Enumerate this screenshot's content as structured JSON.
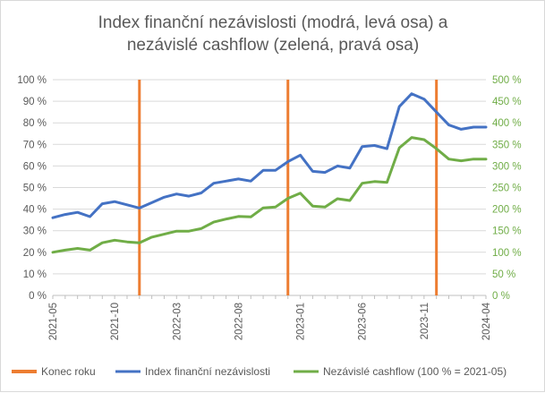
{
  "chart_data": {
    "type": "line",
    "title": [
      "Index finanční nezávislosti (modrá, levá osa) a",
      "nezávislé cashflow (zelená, pravá osa)"
    ],
    "x_ticks": [
      "2021-05",
      "2021-10",
      "2022-03",
      "2022-08",
      "2023-01",
      "2023-06",
      "2023-11",
      "2024-04"
    ],
    "x_first": "2021-05",
    "x_last": "2024-04",
    "left_axis": {
      "min": 0,
      "max": 100,
      "step": 10,
      "tick_labels": [
        "0 %",
        "10 %",
        "20 %",
        "30 %",
        "40 %",
        "50 %",
        "60 %",
        "70 %",
        "80 %",
        "90 %",
        "100 %"
      ],
      "color": "#595959"
    },
    "right_axis": {
      "min": 0,
      "max": 500,
      "step": 50,
      "tick_labels": [
        "0 %",
        "50 %",
        "100 %",
        "150 %",
        "200 %",
        "250 %",
        "300 %",
        "350 %",
        "400 %",
        "450 %",
        "500 %"
      ],
      "color": "#70ad47"
    },
    "grid": "horizontal",
    "legend_position": "bottom",
    "year_end_markers": {
      "name": "Konec roku",
      "color": "#ed7d31",
      "x": [
        "2021-12",
        "2022-12",
        "2023-12"
      ]
    },
    "series": [
      {
        "name": "Index finanční nezávislosti",
        "axis": "left",
        "color": "#4472c4",
        "x": [
          "2021-05",
          "2021-06",
          "2021-07",
          "2021-08",
          "2021-09",
          "2021-10",
          "2021-11",
          "2021-12",
          "2022-01",
          "2022-02",
          "2022-03",
          "2022-04",
          "2022-05",
          "2022-06",
          "2022-07",
          "2022-08",
          "2022-09",
          "2022-10",
          "2022-11",
          "2022-12",
          "2023-01",
          "2023-02",
          "2023-03",
          "2023-04",
          "2023-05",
          "2023-06",
          "2023-07",
          "2023-08",
          "2023-09",
          "2023-10",
          "2023-11",
          "2023-12",
          "2024-01",
          "2024-02",
          "2024-03",
          "2024-04"
        ],
        "values": [
          36,
          37.5,
          38.5,
          36.5,
          42.5,
          43.5,
          42,
          40.5,
          43,
          45.5,
          47,
          46,
          47.5,
          52,
          53,
          54,
          53,
          58,
          58,
          62,
          65,
          57.5,
          57,
          60,
          59,
          69,
          69.5,
          68,
          87.5,
          93.5,
          91,
          85,
          79,
          77,
          78,
          78
        ]
      },
      {
        "name": "Nezávislé cashflow (100 % = 2021-05)",
        "axis": "right",
        "color": "#70ad47",
        "x": [
          "2021-05",
          "2021-06",
          "2021-07",
          "2021-08",
          "2021-09",
          "2021-10",
          "2021-11",
          "2021-12",
          "2022-01",
          "2022-02",
          "2022-03",
          "2022-04",
          "2022-05",
          "2022-06",
          "2022-07",
          "2022-08",
          "2022-09",
          "2022-10",
          "2022-11",
          "2022-12",
          "2023-01",
          "2023-02",
          "2023-03",
          "2023-04",
          "2023-05",
          "2023-06",
          "2023-07",
          "2023-08",
          "2023-09",
          "2023-10",
          "2023-11",
          "2023-12",
          "2024-01",
          "2024-02",
          "2024-03",
          "2024-04"
        ],
        "values": [
          100,
          105,
          109,
          105,
          122,
          128,
          124,
          122,
          135,
          142,
          149,
          149,
          155,
          170,
          177,
          183,
          182,
          203,
          205,
          225,
          237,
          207,
          205,
          224,
          220,
          260,
          264,
          262,
          342,
          366,
          361,
          340,
          316,
          312,
          316,
          316
        ]
      }
    ]
  }
}
